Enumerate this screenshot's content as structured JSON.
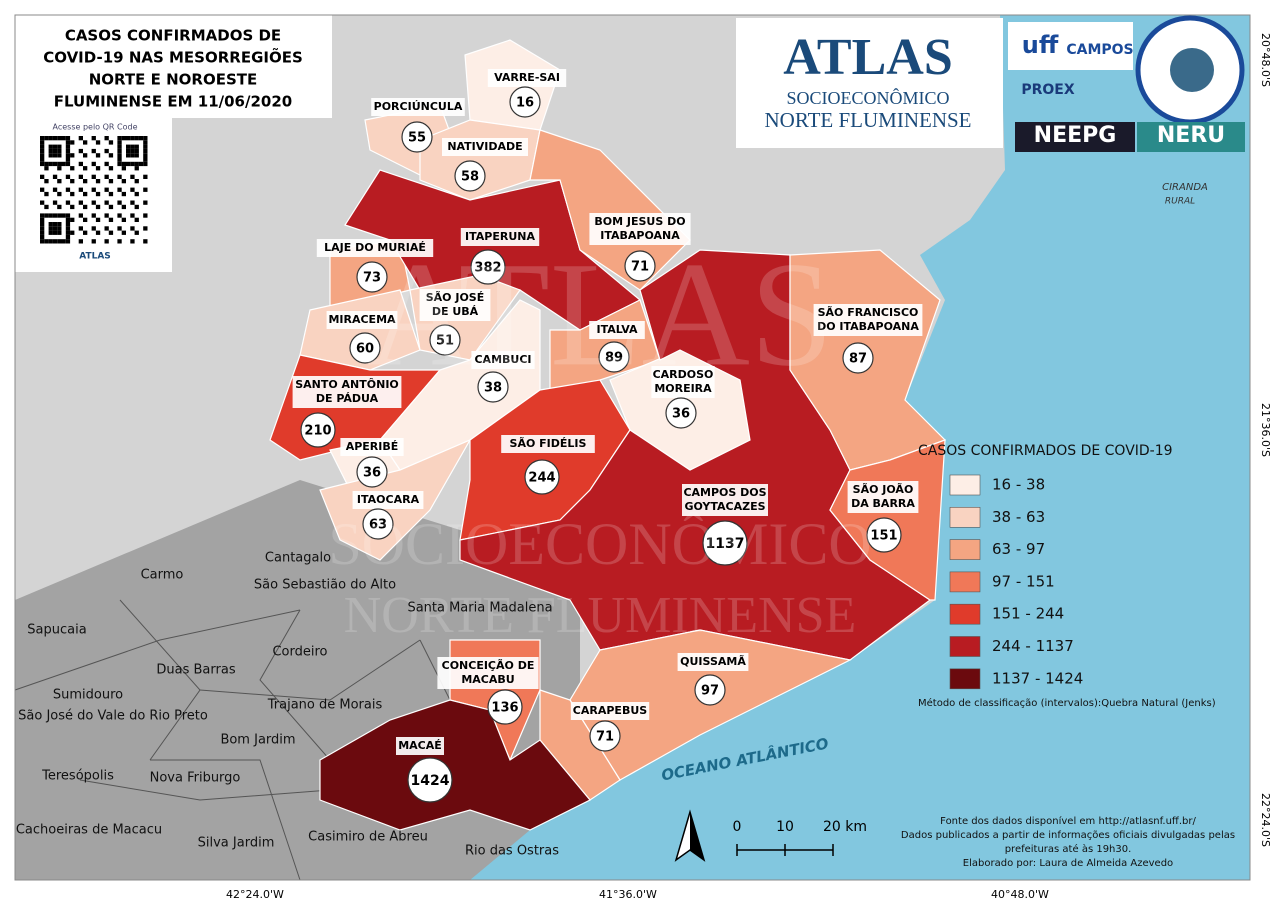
{
  "title_lines": [
    "CASOS CONFIRMADOS DE",
    "COVID-19 NAS MESORREGIÕES",
    "NORTE E NOROESTE",
    "FLUMINENSE EM 11/06/2020"
  ],
  "qr": {
    "caption": "Acesse pelo QR Code",
    "logo": "ATLAS"
  },
  "logos": {
    "atlas": "ATLAS",
    "atlas_sub1": "SOCIOECONÔMICO",
    "atlas_sub2": "NORTE FLUMINENSE",
    "uff": "uff",
    "campos": "CAMPOS",
    "proex": "PROEX",
    "neepg": "NEEPG",
    "neru": "NERU",
    "ciranda": "CIRANDA",
    "rural": "RURAL"
  },
  "municipalities": [
    {
      "name_lines": [
        "VARRE-SAI"
      ],
      "cases": "16",
      "color": "#fdeee6"
    },
    {
      "name_lines": [
        "PORCIÚNCULA"
      ],
      "cases": "55",
      "color": "#f9d3c1"
    },
    {
      "name_lines": [
        "NATIVIDADE"
      ],
      "cases": "58",
      "color": "#f9d3c1"
    },
    {
      "name_lines": [
        "LAJE DO MURIAÉ"
      ],
      "cases": "73",
      "color": "#f4a582"
    },
    {
      "name_lines": [
        "ITAPERUNA"
      ],
      "cases": "382",
      "color": "#b81c22"
    },
    {
      "name_lines": [
        "BOM JESUS DO",
        "ITABAPOANA"
      ],
      "cases": "71",
      "color": "#f4a582"
    },
    {
      "name_lines": [
        "MIRACEMA"
      ],
      "cases": "60",
      "color": "#f9d3c1"
    },
    {
      "name_lines": [
        "SÃO JOSÉ",
        "DE UBÁ"
      ],
      "cases": "51",
      "color": "#f9d3c1"
    },
    {
      "name_lines": [
        "SANTO ANTÔNIO",
        "DE PÁDUA"
      ],
      "cases": "210",
      "color": "#e03b2b"
    },
    {
      "name_lines": [
        "CAMBUCI"
      ],
      "cases": "38",
      "color": "#fdeee6"
    },
    {
      "name_lines": [
        "APERIBÉ"
      ],
      "cases": "36",
      "color": "#fdeee6"
    },
    {
      "name_lines": [
        "ITAOCARA"
      ],
      "cases": "63",
      "color": "#f9d3c1"
    },
    {
      "name_lines": [
        "ITALVA"
      ],
      "cases": "89",
      "color": "#f4a582"
    },
    {
      "name_lines": [
        "CARDOSO",
        "MOREIRA"
      ],
      "cases": "36",
      "color": "#fdeee6"
    },
    {
      "name_lines": [
        "SÃO FIDÉLIS"
      ],
      "cases": "244",
      "color": "#e03b2b"
    },
    {
      "name_lines": [
        "CAMPOS DOS",
        "GOYTACAZES"
      ],
      "cases": "1137",
      "color": "#b81c22"
    },
    {
      "name_lines": [
        "SÃO FRANCISCO",
        "DO ITABAPOANA"
      ],
      "cases": "87",
      "color": "#f4a582"
    },
    {
      "name_lines": [
        "SÃO JOÃO",
        "DA BARRA"
      ],
      "cases": "151",
      "color": "#f07858"
    },
    {
      "name_lines": [
        "QUISSAMÃ"
      ],
      "cases": "97",
      "color": "#f4a582"
    },
    {
      "name_lines": [
        "CARAPEBUS"
      ],
      "cases": "71",
      "color": "#f4a582"
    },
    {
      "name_lines": [
        "CONCEIÇÃO DE",
        "MACABU"
      ],
      "cases": "136",
      "color": "#f07858"
    },
    {
      "name_lines": [
        "MACAÉ"
      ],
      "cases": "1424",
      "color": "#6b0a0e"
    }
  ],
  "other_places": [
    "Cantagalo",
    "São Sebastião do Alto",
    "Carmo",
    "Santa Maria Madalena",
    "Sapucaia",
    "Cordeiro",
    "Duas Barras",
    "Sumidouro",
    "São José do Vale do Rio Preto",
    "Trajano de Morais",
    "Bom Jardim",
    "Teresópolis",
    "Nova Friburgo",
    "Cachoeiras de Macacu",
    "Silva Jardim",
    "Casimiro de Abreu",
    "Rio das Ostras"
  ],
  "ocean": "OCEANO ATLÂNTICO",
  "legend": {
    "title": "CASOS CONFIRMADOS DE COVID-19",
    "classes": [
      {
        "label": "16 - 38",
        "color": "#fdeee6"
      },
      {
        "label": "38 - 63",
        "color": "#f9d3c1"
      },
      {
        "label": "63 - 97",
        "color": "#f4a582"
      },
      {
        "label": "97 - 151",
        "color": "#f07858"
      },
      {
        "label": "151 - 244",
        "color": "#e03b2b"
      },
      {
        "label": "244 - 1137",
        "color": "#b81c22"
      },
      {
        "label": "1137 - 1424",
        "color": "#6b0a0e"
      }
    ],
    "method": "Método de classificação (intervalos):Quebra Natural (Jenks)"
  },
  "source_lines": [
    "Fonte dos dados disponível em http://atlasnf.uff.br/",
    "Dados publicados a partir de informações oficiais divulgadas pelas",
    "prefeituras até às 19h30.",
    "Elaborado por: Laura de Almeida Azevedo"
  ],
  "scale_labels": [
    "0",
    "10",
    "20 km"
  ],
  "lat_labels": [
    "20°48.0'S",
    "21°36.0'S",
    "22°24.0'S"
  ],
  "lon_labels": [
    "42°24.0'W",
    "41°36.0'W",
    "40°48.0'W"
  ]
}
